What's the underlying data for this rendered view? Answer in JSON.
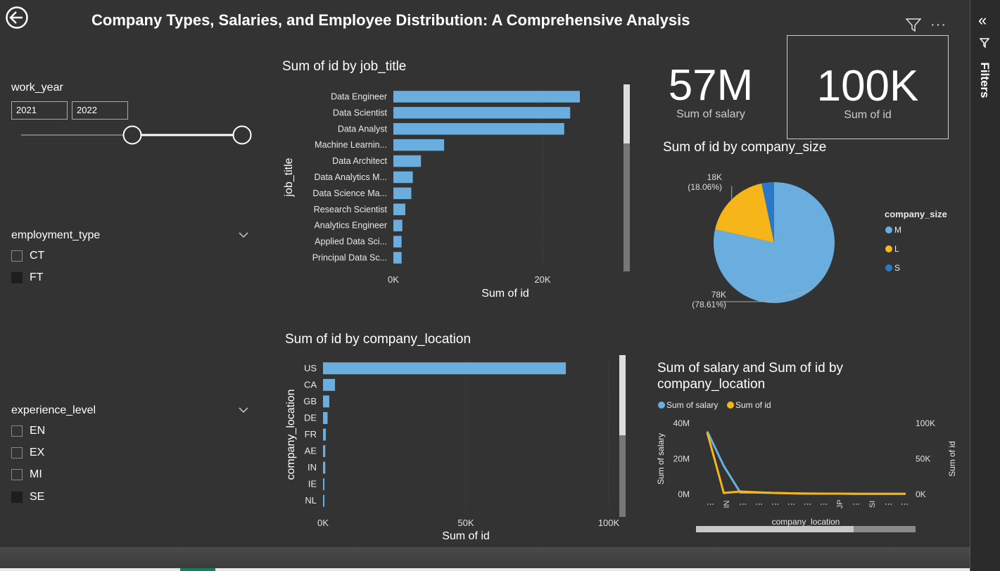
{
  "report": {
    "title": "Company Types, Salaries, and Employee Distribution: A Comprehensive Analysis"
  },
  "filters_pane": {
    "label": "Filters"
  },
  "slicers": {
    "work_year": {
      "title": "work_year",
      "from": "2021",
      "to": "2022"
    },
    "employment_type": {
      "title": "employment_type",
      "options": [
        {
          "label": "CT",
          "checked": false
        },
        {
          "label": "FT",
          "checked": true
        }
      ]
    },
    "experience_level": {
      "title": "experience_level",
      "options": [
        {
          "label": "EN",
          "checked": false
        },
        {
          "label": "EX",
          "checked": false
        },
        {
          "label": "MI",
          "checked": false
        },
        {
          "label": "SE",
          "checked": true
        }
      ]
    }
  },
  "cards": {
    "salary": {
      "value": "57M",
      "label": "Sum of salary"
    },
    "id": {
      "value": "100K",
      "label": "Sum of id"
    }
  },
  "colors": {
    "blue": "#6aaee0",
    "orange": "#f6b519",
    "darkblue": "#2a78c8",
    "canvas": "#333333"
  },
  "chart_data": [
    {
      "id": "job_title_bar",
      "type": "bar",
      "orientation": "horizontal",
      "title": "Sum of id by job_title",
      "xlabel": "Sum of id",
      "ylabel": "job_title",
      "xlim": [
        0,
        30000
      ],
      "xticks": [
        {
          "v": 0,
          "label": "0K"
        },
        {
          "v": 20000,
          "label": "20K"
        }
      ],
      "categories": [
        "Data Engineer",
        "Data Scientist",
        "Data Analyst",
        "Machine Learnin...",
        "Data Architect",
        "Data Analytics M...",
        "Data Science Ma...",
        "Research Scientist",
        "Analytics Engineer",
        "Applied Data Sci...",
        "Principal Data Sc..."
      ],
      "values": [
        25000,
        23700,
        22900,
        6800,
        3700,
        2600,
        2400,
        1600,
        1200,
        1100,
        1100
      ]
    },
    {
      "id": "company_location_bar",
      "type": "bar",
      "orientation": "horizontal",
      "title": "Sum of id by company_location",
      "xlabel": "Sum of id",
      "ylabel": "company_location",
      "xlim": [
        0,
        100000
      ],
      "xticks": [
        {
          "v": 0,
          "label": "0K"
        },
        {
          "v": 50000,
          "label": "50K"
        },
        {
          "v": 100000,
          "label": "100K"
        }
      ],
      "categories": [
        "US",
        "CA",
        "GB",
        "DE",
        "FR",
        "AE",
        "IN",
        "IE",
        "NL"
      ],
      "values": [
        85000,
        4200,
        2200,
        1600,
        1000,
        800,
        800,
        500,
        500
      ]
    },
    {
      "id": "company_size_pie",
      "type": "pie",
      "title": "Sum of id by company_size",
      "legend_title": "company_size",
      "slices": [
        {
          "name": "M",
          "value": 78,
          "label": "78K",
          "pct": "(78.61%)"
        },
        {
          "name": "L",
          "value": 18,
          "label": "18K",
          "pct": "(18.06%)"
        },
        {
          "name": "S",
          "value": 3.3,
          "label": "",
          "pct": ""
        }
      ]
    },
    {
      "id": "salary_id_line",
      "type": "line",
      "title": "Sum of salary and Sum of id by company_location",
      "xlabel": "company_location",
      "ylabel_left": "Sum of salary",
      "ylabel_right": "Sum of id",
      "ylim_left": [
        0,
        40
      ],
      "ylim_right": [
        0,
        100
      ],
      "left_ticks": [
        "0M",
        "20M",
        "40M"
      ],
      "right_ticks": [
        "0K",
        "50K",
        "100K"
      ],
      "x_tick_labels": [
        "IN",
        "JP",
        "SI"
      ],
      "series": [
        {
          "name": "Sum of salary",
          "axis": "left",
          "values": [
            35.5,
            16,
            1,
            1,
            0.8,
            0.6,
            0.5,
            0.4,
            0.4,
            0.3,
            0.3,
            0.3,
            0.3
          ]
        },
        {
          "name": "Sum of id",
          "axis": "right",
          "values": [
            87,
            2,
            4,
            3,
            2,
            1.5,
            1,
            1,
            1,
            0.8,
            0.8,
            0.8,
            0.8
          ]
        }
      ]
    }
  ]
}
